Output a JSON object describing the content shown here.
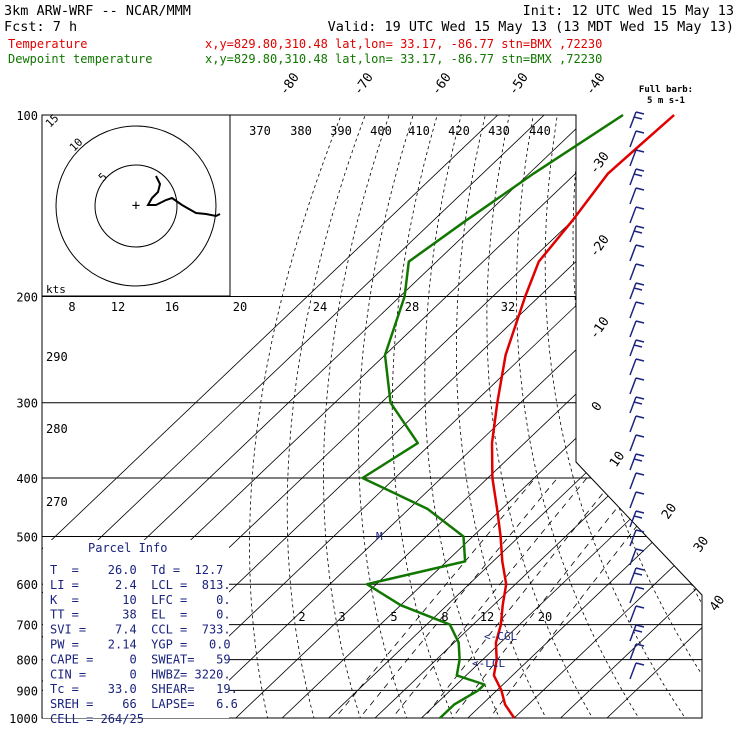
{
  "header": {
    "model": "3km ARW-WRF -- NCAR/MMM",
    "init": "Init: 12 UTC Wed 15 May 13",
    "fcst": "Fcst:    7 h",
    "valid": "Valid: 19 UTC Wed 15 May 13 (13 MDT Wed 15 May 13)",
    "temp_label": "Temperature",
    "temp_loc": "x,y=829.80,310.48   lat,lon= 33.17, -86.77   stn=BMX ,72230",
    "dew_label": "Dewpoint temperature",
    "dew_loc": "x,y=829.80,310.48   lat,lon= 33.17, -86.77   stn=BMX ,72230",
    "barb_note_1": "Full barb:",
    "barb_note_2": "5 m s-1"
  },
  "colors": {
    "temperature": "#e00000",
    "dewpoint": "#117700",
    "parcel": "#1a237e"
  },
  "chart_data": {
    "type": "line",
    "pressure_levels": [
      100,
      200,
      300,
      400,
      500,
      600,
      700,
      800,
      900,
      1000
    ],
    "pressure_label_strings": [
      "100",
      "200",
      "300",
      "400",
      "500",
      "600",
      "700",
      "800",
      "900",
      "1000"
    ],
    "temperature_skew_labels": [
      "-80",
      "-70",
      "-60",
      "-50",
      "-40",
      "-30",
      "-20",
      "-10",
      "0",
      "10",
      "20",
      "30",
      "40"
    ],
    "theta_labels": [
      "370",
      "380",
      "390",
      "400",
      "410",
      "420",
      "430",
      "440"
    ],
    "hodograph_kts_label": "kts",
    "hodograph_speed_labels": [
      "8",
      "12",
      "16",
      "20",
      "24",
      "28",
      "32"
    ],
    "hodograph_ring_labels": [
      "15",
      "10",
      "5"
    ],
    "mixing_ratio_labels": [
      "2",
      "3",
      "5",
      "8",
      "12",
      "20"
    ],
    "isotherm_left_labels": [
      "290",
      "280",
      "270"
    ],
    "series": [
      {
        "name": "Temperature",
        "points": [
          [
            100,
            -72
          ],
          [
            125,
            -73
          ],
          [
            150,
            -70
          ],
          [
            175,
            -68
          ],
          [
            200,
            -63
          ],
          [
            250,
            -54
          ],
          [
            300,
            -45
          ],
          [
            350,
            -37
          ],
          [
            400,
            -29
          ],
          [
            450,
            -21
          ],
          [
            500,
            -14
          ],
          [
            550,
            -8
          ],
          [
            600,
            -2
          ],
          [
            650,
            2
          ],
          [
            700,
            6
          ],
          [
            750,
            9
          ],
          [
            800,
            13
          ],
          [
            850,
            16
          ],
          [
            900,
            21
          ],
          [
            950,
            25
          ],
          [
            1000,
            30
          ]
        ]
      },
      {
        "name": "Dewpoint temperature",
        "points": [
          [
            100,
            -83
          ],
          [
            125,
            -89
          ],
          [
            150,
            -93
          ],
          [
            175,
            -96
          ],
          [
            200,
            -89
          ],
          [
            250,
            -80
          ],
          [
            300,
            -68
          ],
          [
            350,
            -53
          ],
          [
            400,
            -57
          ],
          [
            450,
            -36
          ],
          [
            500,
            -22
          ],
          [
            550,
            -16
          ],
          [
            600,
            -32
          ],
          [
            650,
            -20
          ],
          [
            700,
            -5
          ],
          [
            750,
            1
          ],
          [
            800,
            5
          ],
          [
            850,
            8
          ],
          [
            880,
            16
          ],
          [
            900,
            16
          ],
          [
            950,
            14
          ],
          [
            1000,
            14
          ]
        ]
      }
    ],
    "annotations": [
      "M",
      "<-CCL",
      "<-LCL"
    ]
  },
  "parcel_info": {
    "title": "Parcel Info",
    "rows": [
      "T  =    26.0  Td =  12.7",
      "LI =     2.4  LCL =  813.",
      "K  =      10  LFC =    0.",
      "TT =      38  EL  =    0.",
      "SVI =    7.4  CCL =  733.",
      "PW =    2.14  YGP =   0.0",
      "CAPE =     0  SWEAT=   59",
      "CIN =      0  HWBZ= 3220.",
      "Tc =    33.0  SHEAR=   19.",
      "SREH =    66  LAPSE=   6.6",
      "CELL = 264/25"
    ]
  }
}
